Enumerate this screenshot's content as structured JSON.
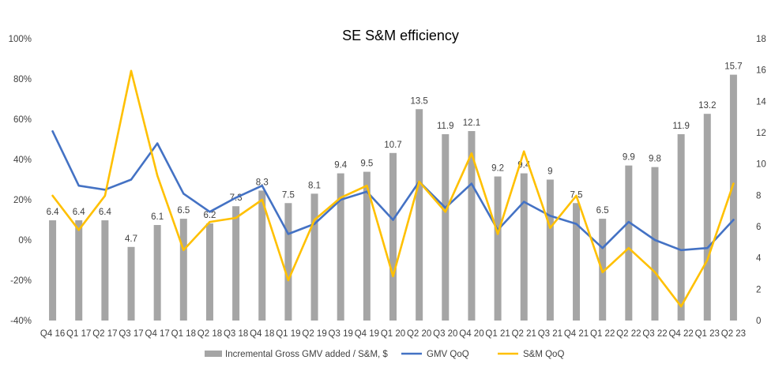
{
  "chart_data": {
    "type": "bar",
    "title": "SE S&M efficiency",
    "categories": [
      "Q4 16",
      "Q1 17",
      "Q2 17",
      "Q3 17",
      "Q4 17",
      "Q1 18",
      "Q2 18",
      "Q3 18",
      "Q4 18",
      "Q1 19",
      "Q2 19",
      "Q3 19",
      "Q4 19",
      "Q1 20",
      "Q2 20",
      "Q3 20",
      "Q4 20",
      "Q1 21",
      "Q2 21",
      "Q3 21",
      "Q4 21",
      "Q1 22",
      "Q2 22",
      "Q3 22",
      "Q4 22",
      "Q1 23",
      "Q2 23"
    ],
    "left_axis": {
      "ylim": [
        -40,
        100
      ],
      "ticks": [
        "-40%",
        "-20%",
        "0%",
        "20%",
        "40%",
        "60%",
        "80%",
        "100%"
      ]
    },
    "right_axis": {
      "ylim": [
        0,
        18
      ],
      "ticks": [
        "0",
        "2",
        "4",
        "6",
        "8",
        "10",
        "12",
        "14",
        "16",
        "18"
      ]
    },
    "series": [
      {
        "name": "Incremental Gross GMV added / S&M, $",
        "type": "bar",
        "axis": "right",
        "color": "#a5a5a5",
        "values": [
          6.4,
          6.4,
          6.4,
          4.7,
          6.1,
          6.5,
          6.2,
          7.3,
          8.3,
          7.5,
          8.1,
          9.4,
          9.5,
          10.7,
          13.5,
          11.9,
          12.1,
          9.2,
          9.4,
          9,
          7.5,
          6.5,
          9.9,
          9.8,
          11.9,
          13.2,
          15.7
        ],
        "labels": [
          "6.4",
          "6.4",
          "6.4",
          "4.7",
          "6.1",
          "6.5",
          "6.2",
          "7.3",
          "8.3",
          "7.5",
          "8.1",
          "9.4",
          "9.5",
          "10.7",
          "13.5",
          "11.9",
          "12.1",
          "9.2",
          "9.4",
          "9",
          "7.5",
          "6.5",
          "9.9",
          "9.8",
          "11.9",
          "13.2",
          "15.7"
        ]
      },
      {
        "name": "GMV QoQ",
        "type": "line",
        "axis": "left",
        "color": "#4472c4",
        "values": [
          54,
          27,
          25,
          30,
          48,
          23,
          14,
          21,
          27,
          3,
          8,
          20,
          24,
          10,
          29,
          16,
          28,
          5,
          19,
          12,
          8,
          -4,
          9,
          0,
          -5,
          -4,
          10
        ]
      },
      {
        "name": "S&M QoQ",
        "type": "line",
        "axis": "left",
        "color": "#ffc000",
        "values": [
          22,
          5,
          22,
          84,
          32,
          -5,
          9,
          11,
          20,
          -20,
          10,
          21,
          27,
          -18,
          29,
          14,
          43,
          3,
          44,
          6,
          22,
          -16,
          -4,
          -16,
          -33,
          -10,
          28
        ]
      }
    ],
    "legend": "bottom",
    "grid": false
  }
}
